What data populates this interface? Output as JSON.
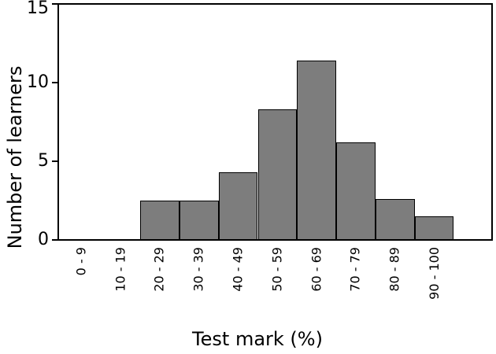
{
  "chart_data": {
    "type": "bar",
    "title": "",
    "categories": [
      "0 - 9",
      "10 - 19",
      "20 - 29",
      "30 - 39",
      "40 - 49",
      "50 - 59",
      "60 - 69",
      "70 - 79",
      "80 - 89",
      "90 - 100"
    ],
    "values": [
      0,
      0,
      2.5,
      2.5,
      4.3,
      8.3,
      11.4,
      6.2,
      2.6,
      1.5
    ],
    "xlabel": "Test mark (%)",
    "ylabel": "Number of learners",
    "ylim": [
      0,
      15
    ],
    "yticks": [
      0,
      5,
      10,
      15
    ],
    "bar_fill": "#7d7d7d",
    "bar_edge": "#000000",
    "axis_color": "#000000",
    "text_color": "#000000",
    "background": "#ffffff",
    "grid": false,
    "legend": false
  }
}
